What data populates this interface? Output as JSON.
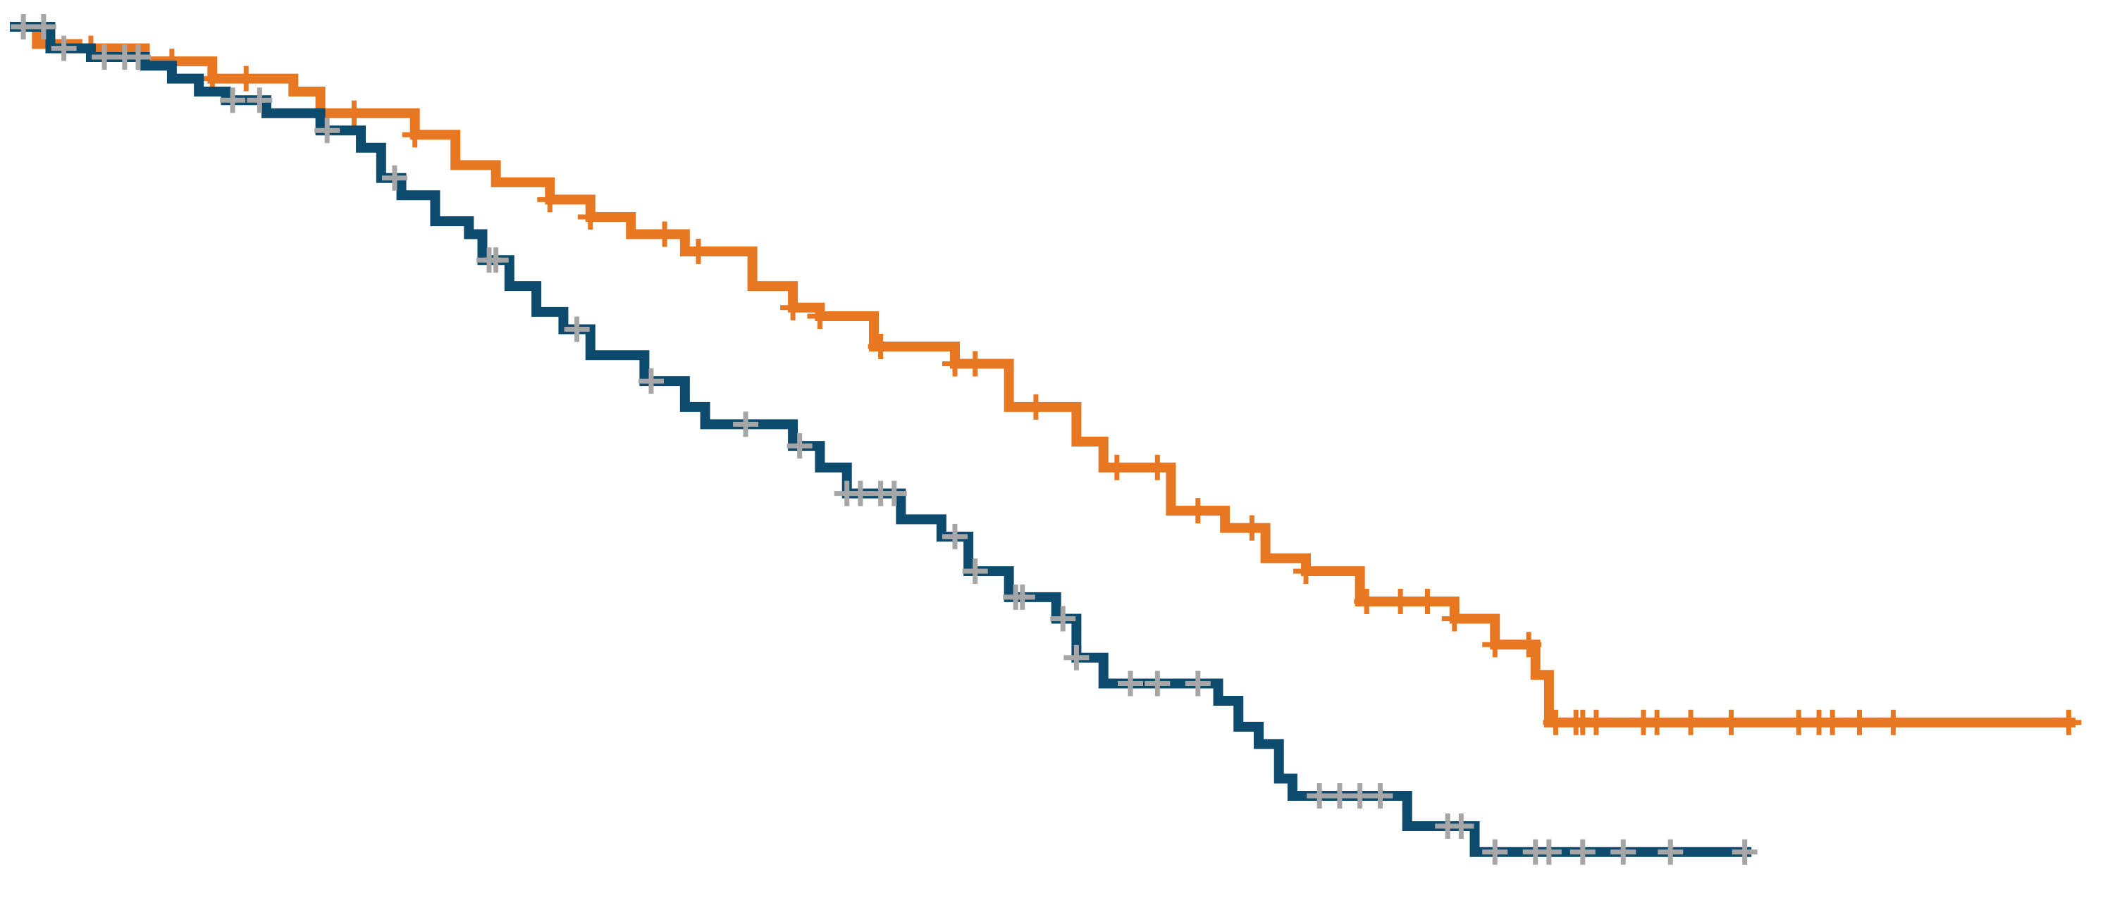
{
  "chart_data": {
    "type": "line",
    "title": "",
    "xlabel": "",
    "ylabel": "",
    "xlim": [
      0,
      1530
    ],
    "ylim": [
      0,
      1.0
    ],
    "grid": false,
    "legend": "none",
    "step": "post",
    "series": [
      {
        "color": "#E87722",
        "points": [
          [
            0,
            1.0
          ],
          [
            20,
            0.98
          ],
          [
            50,
            0.975
          ],
          [
            100,
            0.96
          ],
          [
            150,
            0.94
          ],
          [
            210,
            0.925
          ],
          [
            230,
            0.9
          ],
          [
            300,
            0.875
          ],
          [
            330,
            0.84
          ],
          [
            360,
            0.82
          ],
          [
            400,
            0.8
          ],
          [
            430,
            0.78
          ],
          [
            460,
            0.76
          ],
          [
            500,
            0.74
          ],
          [
            550,
            0.7
          ],
          [
            580,
            0.675
          ],
          [
            600,
            0.665
          ],
          [
            640,
            0.63
          ],
          [
            700,
            0.61
          ],
          [
            740,
            0.56
          ],
          [
            790,
            0.52
          ],
          [
            810,
            0.49
          ],
          [
            860,
            0.44
          ],
          [
            900,
            0.42
          ],
          [
            930,
            0.385
          ],
          [
            960,
            0.37
          ],
          [
            1000,
            0.335
          ],
          [
            1070,
            0.315
          ],
          [
            1100,
            0.285
          ],
          [
            1130,
            0.25
          ],
          [
            1140,
            0.195
          ],
          [
            1530,
            0.195
          ]
        ],
        "censor_x": [
          60,
          120,
          150,
          175,
          255,
          300,
          400,
          430,
          485,
          510,
          580,
          600,
          645,
          700,
          715,
          760,
          820,
          850,
          880,
          920,
          960,
          1005,
          1030,
          1050,
          1070,
          1100,
          1125,
          1145,
          1160,
          1165,
          1175,
          1210,
          1220,
          1245,
          1275,
          1325,
          1340,
          1350,
          1370,
          1395,
          1525
        ]
      },
      {
        "color": "#0C4A6E",
        "points": [
          [
            0,
            1.0
          ],
          [
            30,
            0.975
          ],
          [
            60,
            0.965
          ],
          [
            100,
            0.955
          ],
          [
            120,
            0.94
          ],
          [
            140,
            0.925
          ],
          [
            160,
            0.915
          ],
          [
            190,
            0.9
          ],
          [
            230,
            0.88
          ],
          [
            260,
            0.86
          ],
          [
            275,
            0.825
          ],
          [
            290,
            0.805
          ],
          [
            315,
            0.775
          ],
          [
            340,
            0.76
          ],
          [
            350,
            0.73
          ],
          [
            370,
            0.7
          ],
          [
            390,
            0.67
          ],
          [
            410,
            0.65
          ],
          [
            430,
            0.62
          ],
          [
            470,
            0.59
          ],
          [
            500,
            0.56
          ],
          [
            515,
            0.54
          ],
          [
            580,
            0.515
          ],
          [
            600,
            0.49
          ],
          [
            620,
            0.46
          ],
          [
            660,
            0.43
          ],
          [
            690,
            0.41
          ],
          [
            710,
            0.37
          ],
          [
            740,
            0.34
          ],
          [
            775,
            0.315
          ],
          [
            790,
            0.27
          ],
          [
            810,
            0.24
          ],
          [
            895,
            0.22
          ],
          [
            910,
            0.19
          ],
          [
            925,
            0.17
          ],
          [
            940,
            0.13
          ],
          [
            950,
            0.11
          ],
          [
            1035,
            0.075
          ],
          [
            1085,
            0.045
          ],
          [
            1290,
            0.045
          ]
        ],
        "censor_x": [
          10,
          25,
          40,
          70,
          85,
          95,
          165,
          185,
          235,
          285,
          355,
          360,
          420,
          475,
          545,
          585,
          620,
          630,
          645,
          655,
          700,
          715,
          745,
          750,
          780,
          790,
          830,
          850,
          880,
          970,
          985,
          1000,
          1015,
          1065,
          1075,
          1100,
          1130,
          1140,
          1165,
          1195,
          1230,
          1285
        ]
      }
    ]
  }
}
